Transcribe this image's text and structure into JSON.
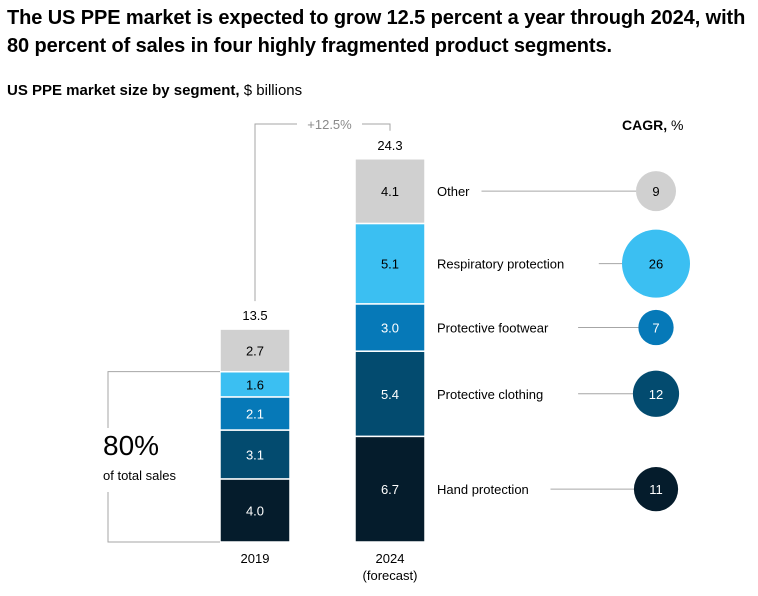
{
  "header": {
    "title": "The US PPE market is expected to grow 12.5 percent a year through 2024, with 80 percent of sales in four highly fragmented product segments.",
    "subtitle_bold": "US PPE market size by segment,",
    "subtitle_rest": " $ billions"
  },
  "chart_data": {
    "type": "bar",
    "stacked": true,
    "categories": [
      "2019",
      "2024"
    ],
    "category_sublabels": [
      "",
      "(forecast)"
    ],
    "totals": [
      "13.5",
      "24.3"
    ],
    "series": [
      {
        "name": "Hand protection",
        "values": [
          4.0,
          6.7
        ],
        "value_labels": [
          "4.0",
          "6.7"
        ],
        "cagr": 11,
        "color": "#051c2c",
        "text_color": "#ffffff"
      },
      {
        "name": "Protective clothing",
        "values": [
          3.1,
          5.4
        ],
        "value_labels": [
          "3.1",
          "5.4"
        ],
        "cagr": 12,
        "color": "#034b6f",
        "text_color": "#ffffff"
      },
      {
        "name": "Protective footwear",
        "values": [
          2.1,
          3.0
        ],
        "value_labels": [
          "2.1",
          "3.0"
        ],
        "cagr": 7,
        "color": "#0679b8",
        "text_color": "#ffffff"
      },
      {
        "name": "Respiratory protection",
        "values": [
          1.6,
          5.1
        ],
        "value_labels": [
          "1.6",
          "5.1"
        ],
        "cagr": 26,
        "color": "#3bbff2",
        "text_color": "#000000"
      },
      {
        "name": "Other",
        "values": [
          2.7,
          4.1
        ],
        "value_labels": [
          "2.7",
          "4.1"
        ],
        "cagr": 9,
        "color": "#d0d0d0",
        "text_color": "#000000"
      }
    ],
    "growth_label": "+12.5%",
    "cagr_header_bold": "CAGR,",
    "cagr_header_rest": " %",
    "share_callout": {
      "value": "80%",
      "label": "of total sales"
    }
  }
}
